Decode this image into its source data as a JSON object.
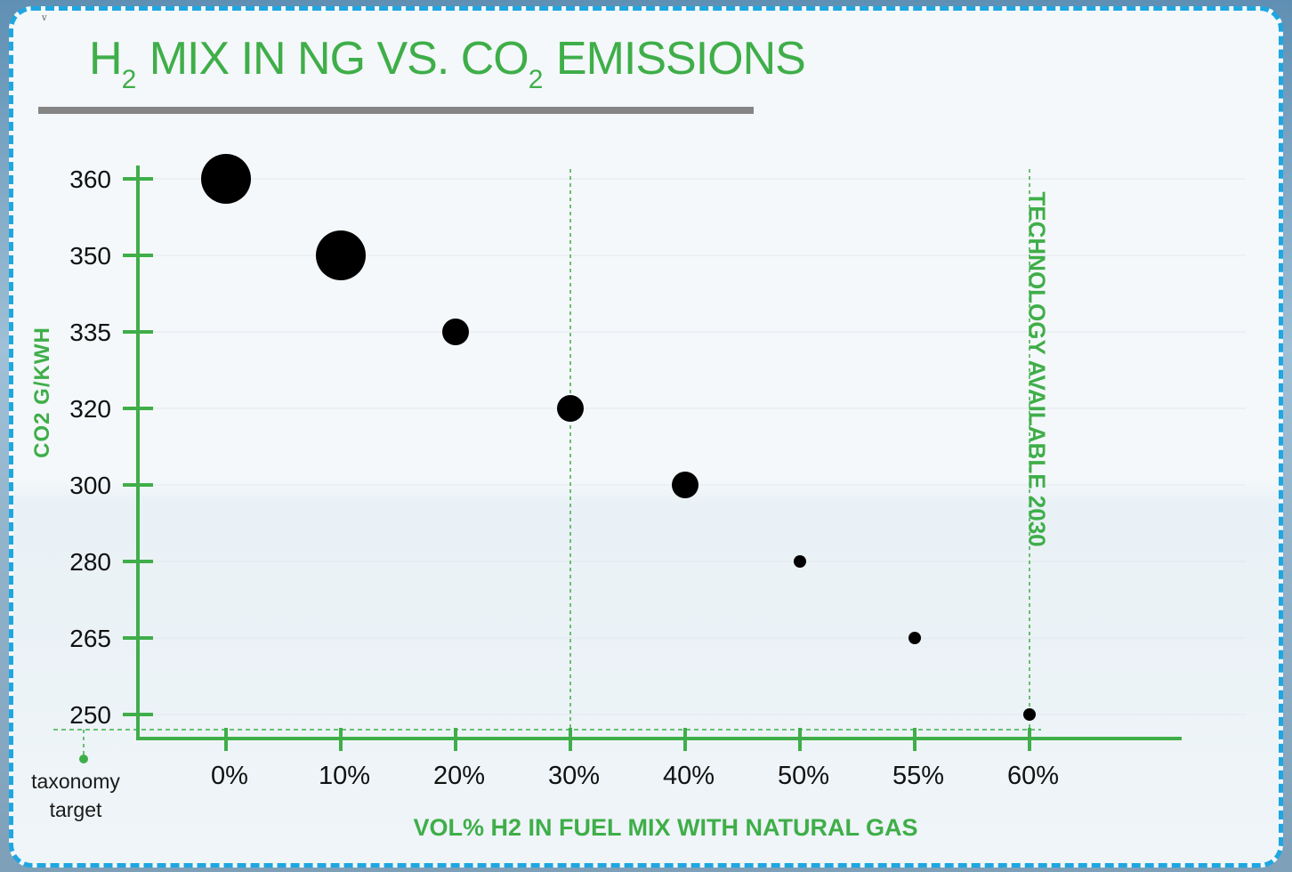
{
  "corner_mark": "v",
  "title": {
    "main_1": "H",
    "sub_1": "2",
    "main_2": "MIX IN NG VS. CO",
    "sub_2": "2",
    "main_3": "EMISSIONS"
  },
  "annotation": "TECHNOLOGY AVAILABLE 2030",
  "taxonomy": {
    "line1": "taxonomy",
    "line2": "target"
  },
  "colors": {
    "accent": "#3fae49",
    "border": "#1ea7e1",
    "marker": "#000000",
    "title_bar": "#858585"
  },
  "chart_data": {
    "type": "scatter",
    "title": "H2 MIX IN NG VS. CO2 EMISSIONS",
    "xlabel": "VOL% H2 IN FUEL MIX WITH NATURAL GAS",
    "ylabel": "CO2 G/KWH",
    "x_ticks": [
      "0%",
      "10%",
      "20%",
      "30%",
      "40%",
      "50%",
      "55%",
      "60%"
    ],
    "y_ticks": [
      "360",
      "350",
      "335",
      "320",
      "300",
      "280",
      "265",
      "250"
    ],
    "points": [
      {
        "x": "0%",
        "y": 360,
        "size": "largest"
      },
      {
        "x": "10%",
        "y": 350,
        "size": "largest"
      },
      {
        "x": "20%",
        "y": 335,
        "size": "large"
      },
      {
        "x": "30%",
        "y": 320,
        "size": "large"
      },
      {
        "x": "40%",
        "y": 300,
        "size": "large"
      },
      {
        "x": "50%",
        "y": 280,
        "size": "small"
      },
      {
        "x": "55%",
        "y": 265,
        "size": "small"
      },
      {
        "x": "60%",
        "y": 250,
        "size": "small"
      }
    ],
    "reference_lines": [
      {
        "orientation": "vertical",
        "at": "30%",
        "style": "dashed"
      },
      {
        "orientation": "vertical",
        "at": "60%",
        "style": "dashed",
        "label": "TECHNOLOGY AVAILABLE 2030"
      },
      {
        "orientation": "horizontal",
        "label": "taxonomy target",
        "style": "dashed"
      }
    ],
    "grid": true,
    "legend": "none"
  }
}
